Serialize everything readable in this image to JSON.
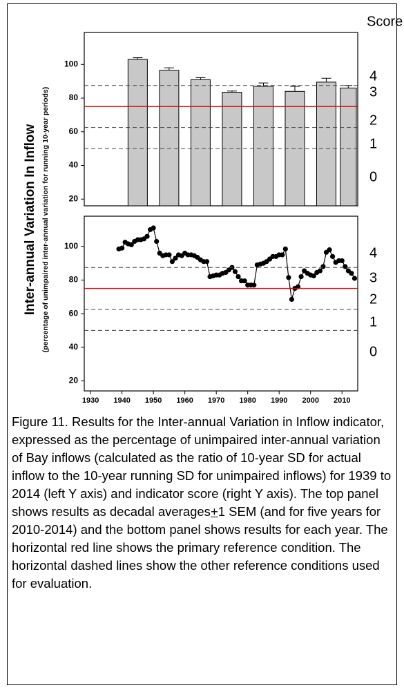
{
  "chart_data": [
    {
      "type": "bar",
      "ylabel": "Inter-annual Variation In Inflow",
      "ylabel_note": "(percentage of unimpaired inter-annual variation for running 10-year periods)",
      "score_title": "Score",
      "x": [
        1945,
        1955,
        1965,
        1975,
        1985,
        1995,
        2005,
        2012
      ],
      "values": [
        103,
        96.5,
        91,
        83.5,
        87,
        84,
        89.5,
        86
      ],
      "errors": [
        1,
        1.5,
        1.2,
        0.7,
        2,
        3,
        2.3,
        1.5
      ],
      "color": "#c8c8c8",
      "xlim": [
        1928,
        2015
      ],
      "ylim": [
        16,
        119
      ],
      "yticks": [
        20,
        40,
        60,
        80,
        100
      ],
      "reference_lines": [
        {
          "value": 87.5,
          "color": "#444444",
          "dashed": true
        },
        {
          "value": 75,
          "color": "#e00000",
          "dashed": false
        },
        {
          "value": 62.5,
          "color": "#444444",
          "dashed": true
        },
        {
          "value": 50,
          "color": "#444444",
          "dashed": true
        }
      ],
      "score_labels": [
        4,
        3,
        2,
        1,
        0
      ]
    },
    {
      "type": "line",
      "x": [
        1939,
        1940,
        1941,
        1942,
        1943,
        1944,
        1945,
        1946,
        1947,
        1948,
        1949,
        1950,
        1951,
        1952,
        1953,
        1954,
        1955,
        1956,
        1957,
        1958,
        1959,
        1960,
        1961,
        1962,
        1963,
        1964,
        1965,
        1966,
        1967,
        1968,
        1969,
        1970,
        1971,
        1972,
        1973,
        1974,
        1975,
        1976,
        1977,
        1978,
        1979,
        1980,
        1981,
        1982,
        1983,
        1984,
        1985,
        1986,
        1987,
        1988,
        1989,
        1990,
        1991,
        1992,
        1993,
        1994,
        1995,
        1996,
        1997,
        1998,
        1999,
        2000,
        2001,
        2002,
        2003,
        2004,
        2005,
        2006,
        2007,
        2008,
        2009,
        2010,
        2011,
        2012,
        2013,
        2014
      ],
      "values": [
        98.5,
        99,
        102.5,
        101.5,
        101,
        103,
        104,
        104,
        104.5,
        106,
        110,
        111,
        103,
        96,
        94.5,
        95,
        95,
        91,
        93,
        95,
        94.5,
        96,
        95,
        95,
        94.5,
        93.5,
        92,
        91,
        91,
        82,
        82.5,
        83,
        83,
        84,
        84.5,
        86,
        87.5,
        85,
        82,
        79.5,
        79.5,
        77,
        77,
        77,
        89,
        89.5,
        90,
        91,
        92.5,
        94,
        94,
        95,
        95,
        98.5,
        81.5,
        68.5,
        75,
        76,
        82,
        85.5,
        84,
        83,
        82.5,
        84.5,
        85.5,
        88,
        96.5,
        98,
        94,
        90.5,
        91.5,
        91.5,
        88,
        85.5,
        84,
        81
      ],
      "color": "#000000",
      "xlim": [
        1928,
        2015
      ],
      "ylim": [
        14,
        118
      ],
      "xticks": [
        1930,
        1940,
        1950,
        1960,
        1970,
        1980,
        1990,
        2000,
        2010
      ],
      "yticks": [
        20,
        40,
        60,
        80,
        100
      ],
      "reference_lines": [
        {
          "value": 87.5,
          "color": "#444444",
          "dashed": true
        },
        {
          "value": 75,
          "color": "#e00000",
          "dashed": false
        },
        {
          "value": 62.5,
          "color": "#444444",
          "dashed": true
        },
        {
          "value": 50,
          "color": "#444444",
          "dashed": true
        }
      ],
      "score_labels": [
        4,
        3,
        2,
        1,
        0
      ]
    }
  ],
  "caption": [
    "Figure 11. Results for the Inter-annual Variation in Inflow indicator, expressed as the percentage of unimpaired inter-annual variation  of Bay inflows (calculated as  the ratio of 10-year SD for actual inflow to the 10-year running SD for unimpaired inflows) for 1939 to 2014 (left Y axis) and indicator score (right Y axis). The top panel shows results as decadal averages",
    "+",
    "1 SEM (and for five years for 2010-2014) and the bottom panel shows results for each year. The horizontal red line shows the primary reference condition. The horizontal dashed lines show the other reference conditions used for evaluation."
  ]
}
